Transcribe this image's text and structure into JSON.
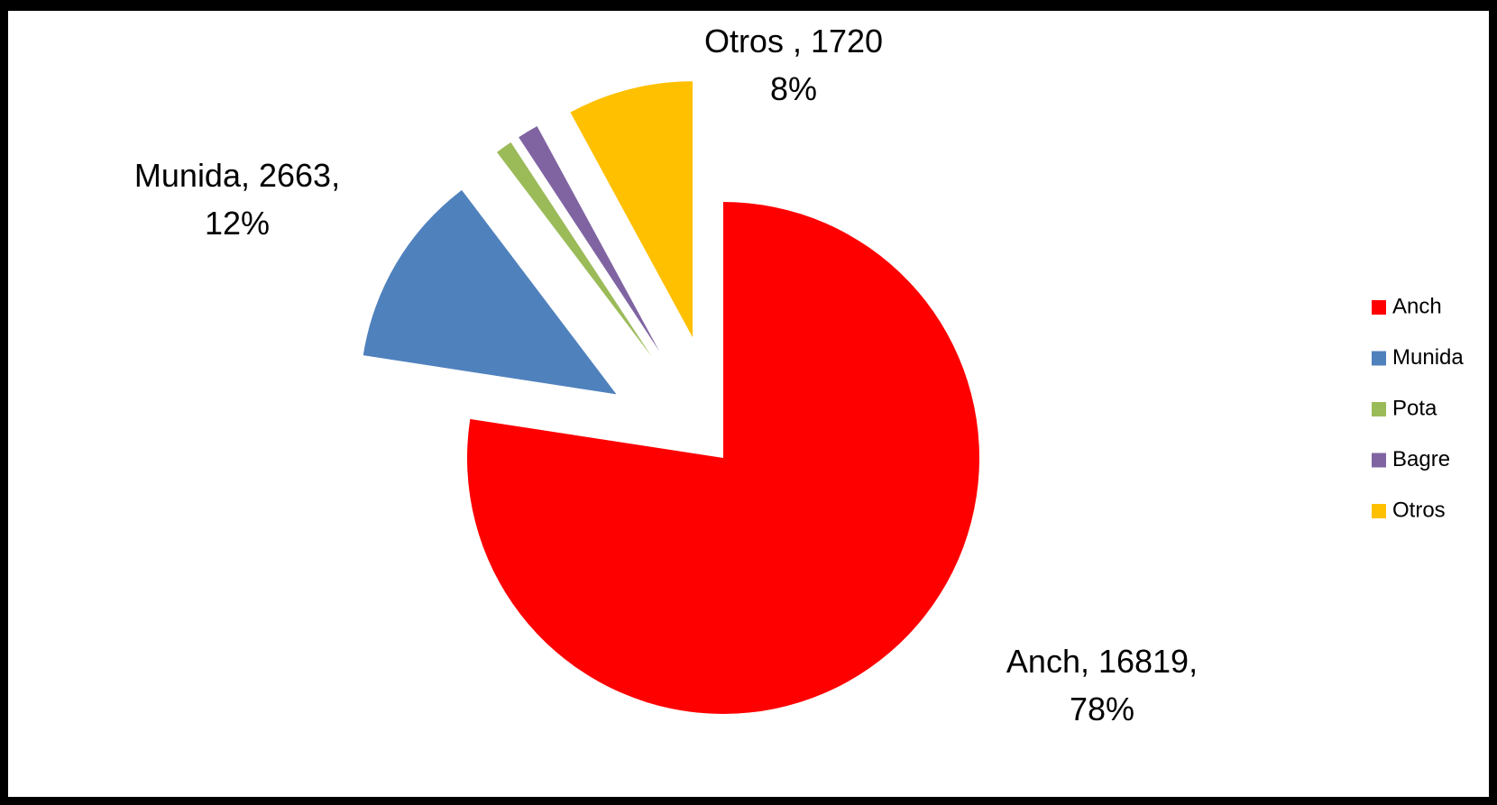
{
  "chart_data": {
    "type": "pie",
    "categories": [
      "Anch",
      "Munida",
      "Pota",
      "Bagre",
      "Otros"
    ],
    "values": [
      16819,
      2663,
      230,
      290,
      1720
    ],
    "value_labels": [
      [
        "Anch, 16819,",
        "78%"
      ],
      [
        "Munida, 2663,",
        "12%"
      ],
      null,
      null,
      [
        "Otros , 1720",
        "8%"
      ]
    ],
    "colors": [
      "#ff0000",
      "#4f81bd",
      "#9bbb59",
      "#8064a2",
      "#ffc000"
    ],
    "exploded": [
      false,
      true,
      true,
      true,
      true
    ],
    "legend": "right"
  }
}
